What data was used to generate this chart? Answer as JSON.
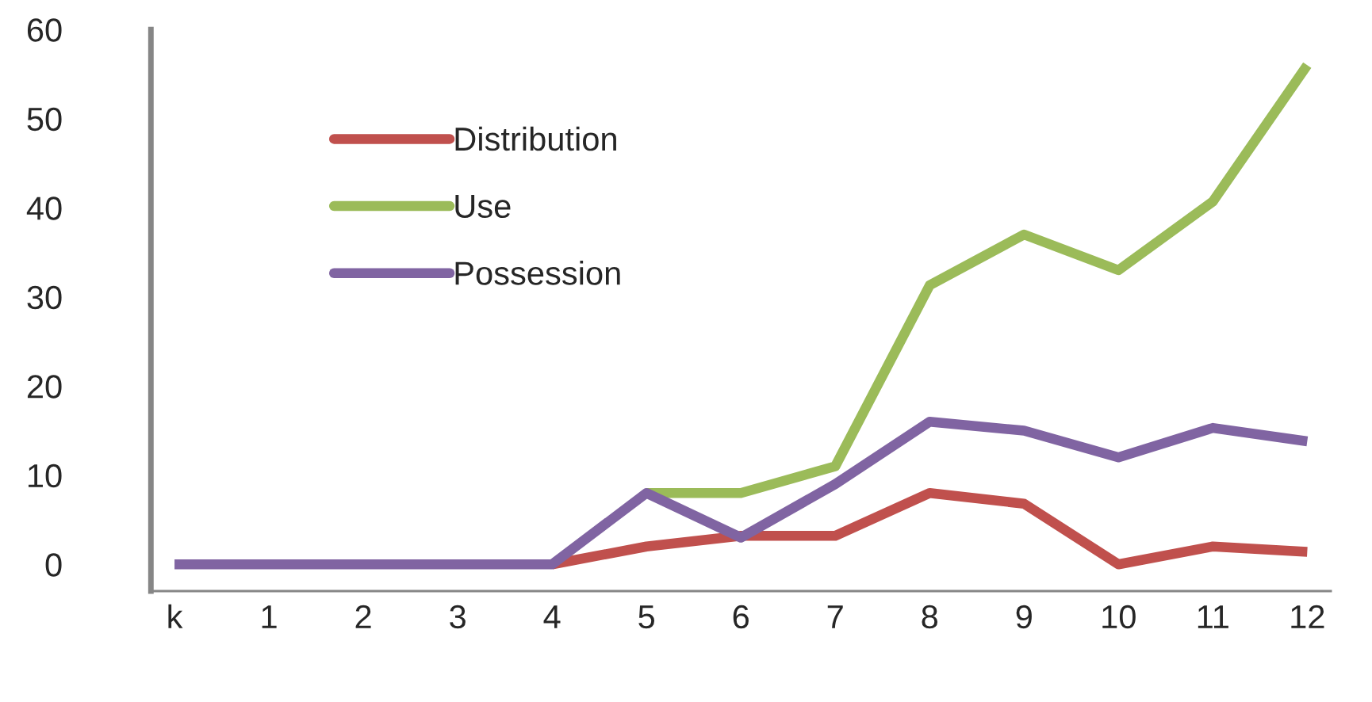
{
  "chart_data": {
    "type": "line",
    "categories": [
      "k",
      "1",
      "2",
      "3",
      "4",
      "5",
      "6",
      "7",
      "8",
      "9",
      "10",
      "11",
      "12"
    ],
    "series": [
      {
        "name": "Distribution",
        "color": "#c0504d",
        "values": [
          null,
          null,
          null,
          null,
          0,
          2,
          3.2,
          3.2,
          8,
          6.8,
          0,
          2,
          1.4
        ]
      },
      {
        "name": "Use",
        "color": "#9bbb59",
        "values": [
          null,
          null,
          null,
          null,
          null,
          8,
          8,
          11,
          31.3,
          37,
          33,
          40.7,
          56
        ]
      },
      {
        "name": "Possession",
        "color": "#8064a2",
        "values": [
          0,
          0,
          0,
          0,
          0,
          8,
          3,
          9,
          16,
          15,
          12,
          15.3,
          13.8
        ]
      }
    ],
    "ylim": [
      -3,
      60
    ],
    "yticks": [
      0,
      10,
      20,
      30,
      40,
      50,
      60
    ],
    "grid": false,
    "legend": "top left",
    "marker": "none",
    "line_style": "solid"
  }
}
